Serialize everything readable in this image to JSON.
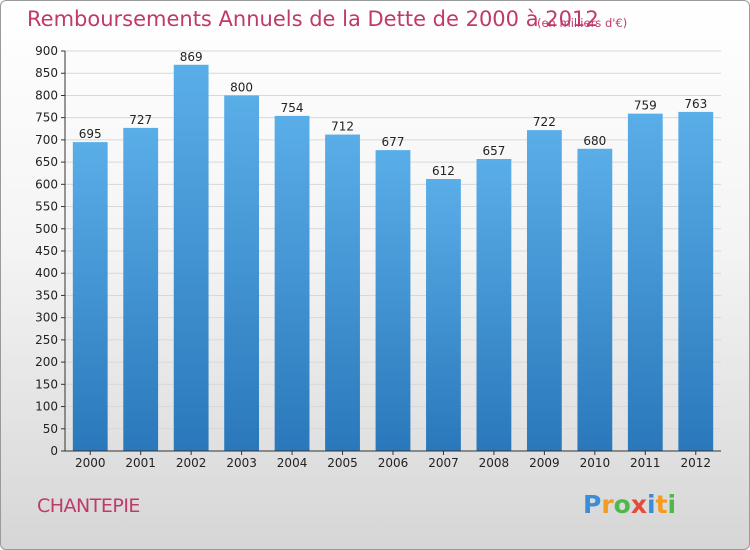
{
  "header": {
    "title": "Remboursements Annuels de la Dette de 2000 à 2012",
    "unit": "(en milliers d'€)"
  },
  "footer": {
    "city": "CHANTEPIE",
    "logo_letters": [
      "P",
      "r",
      "o",
      "x",
      "i",
      "t",
      "i"
    ],
    "logo_colors": [
      "#3a8ed8",
      "#f39c1f",
      "#4fb84a",
      "#e34a3c",
      "#3a8ed8",
      "#f39c1f",
      "#4fb84a"
    ]
  },
  "chart_data": {
    "type": "bar",
    "title": "Remboursements Annuels de la Dette de 2000 à 2012",
    "categories": [
      "2000",
      "2001",
      "2002",
      "2003",
      "2004",
      "2005",
      "2006",
      "2007",
      "2008",
      "2009",
      "2010",
      "2011",
      "2012"
    ],
    "values": [
      695,
      727,
      869,
      800,
      754,
      712,
      677,
      612,
      657,
      722,
      680,
      759,
      763
    ],
    "ylim": [
      0,
      900
    ],
    "yticks": [
      0,
      50,
      100,
      150,
      200,
      250,
      300,
      350,
      400,
      450,
      500,
      550,
      600,
      650,
      700,
      750,
      800,
      850,
      900
    ],
    "grid": true,
    "bar_color_top": "#5aaee8",
    "bar_color_bottom": "#2a78bb",
    "grid_color": "#d8d8d8",
    "axis_color": "#333333"
  }
}
